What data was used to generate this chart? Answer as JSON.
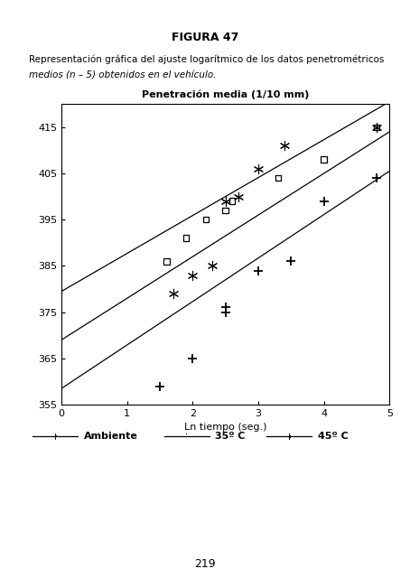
{
  "title": "FIGURA 47",
  "description_line1": "Representación gráfica del ajuste logarítmico de los datos penetrométricos",
  "description_line2": "medios (n – 5) obtenidos en el vehículo.",
  "chart_title": "Penetración media (1/10 mm)",
  "xlabel": "Ln tiempo (seg.)",
  "xlim": [
    0,
    5
  ],
  "ylim": [
    355,
    420
  ],
  "yticks": [
    355,
    365,
    375,
    385,
    395,
    405,
    415
  ],
  "xticks": [
    0,
    1,
    2,
    3,
    4,
    5
  ],
  "page_number": "219",
  "ambiente_x": [
    1.5,
    2.0,
    2.5,
    2.5,
    3.0,
    3.5,
    4.0,
    4.8
  ],
  "ambiente_y": [
    359,
    365,
    375,
    376,
    384,
    386,
    399,
    404
  ],
  "ambiente_line_x": [
    0,
    5
  ],
  "ambiente_line_y": [
    358.5,
    405.5
  ],
  "serie35_x": [
    1.6,
    1.9,
    2.2,
    2.5,
    2.6,
    3.3,
    4.0,
    4.8
  ],
  "serie35_y": [
    386,
    391,
    395,
    397,
    399,
    404,
    408,
    415
  ],
  "serie35_line_x": [
    0,
    5
  ],
  "serie35_line_y": [
    379.5,
    420.5
  ],
  "serie45_x": [
    1.7,
    2.0,
    2.3,
    2.5,
    2.7,
    3.0,
    3.4,
    4.8
  ],
  "serie45_y": [
    379,
    383,
    385,
    399,
    400,
    406,
    411,
    415
  ],
  "serie45_line_x": [
    0,
    5
  ],
  "serie45_line_y": [
    369.0,
    414.0
  ],
  "line_color": "#000000",
  "bg_color": "#ffffff"
}
